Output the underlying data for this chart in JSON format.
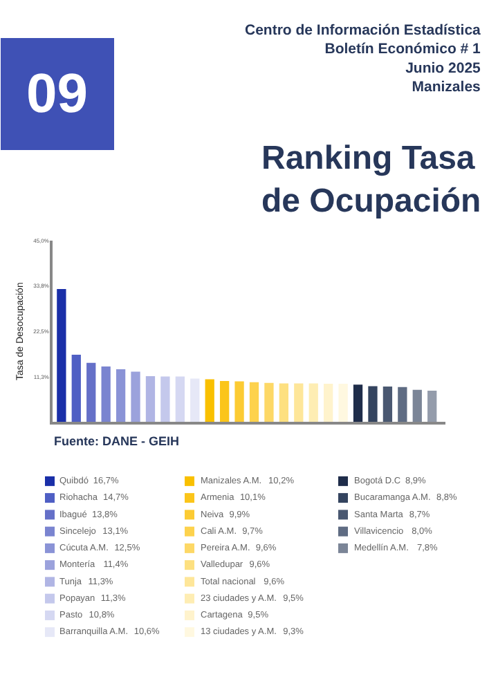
{
  "chart_data": [
    {
      "type": "bar",
      "title": "Ranking Tasa de Ocupación",
      "subtitle": "Centro de Información Estadística\nBoletín Económico # 1\nJunio 2025\nManizales",
      "ylabel": "Tasa de Desocupación",
      "categories": [
        null,
        null,
        null,
        null,
        null,
        null,
        null,
        null,
        null,
        null,
        null,
        null,
        null,
        null,
        null,
        null,
        null,
        null,
        null,
        null,
        null,
        null,
        null,
        null,
        null,
        null
      ],
      "values": [
        33.0,
        16.7,
        14.7,
        13.8,
        13.1,
        12.5,
        11.4,
        11.3,
        11.3,
        10.8,
        10.6,
        10.2,
        10.1,
        9.9,
        9.7,
        9.6,
        9.6,
        9.6,
        9.5,
        9.5,
        9.3,
        8.9,
        8.8,
        8.7,
        8.0,
        7.8
      ],
      "colors": [
        "#1a2fa8",
        "#4f5fc4",
        "#6570c8",
        "#7a84d0",
        "#8a93d6",
        "#9ba2dc",
        "#b0b5e4",
        "#c4c8ec",
        "#d5d8f2",
        "#e6e8f7",
        "#f9c000",
        "#fbc51a",
        "#fccb33",
        "#fdd24d",
        "#fdd866",
        "#fde080",
        "#fee699",
        "#feedb3",
        "#fff3cc",
        "#fff8e0",
        "#1f2d4a",
        "#34445f",
        "#4a5871",
        "#5f6c83",
        "#7b8597",
        "#949cab"
      ],
      "ylim": [
        0,
        45
      ],
      "yticks": [
        {
          "value": 11.25,
          "label": "11,3%"
        },
        {
          "value": 22.5,
          "label": "22,5%"
        },
        {
          "value": 33.75,
          "label": "33,8%"
        },
        {
          "value": 45,
          "label": "45,0%"
        }
      ],
      "tick_labels": "y",
      "grid": false,
      "legend": false,
      "annotations": [
        "09",
        "Fuente: DANE - GEIH"
      ]
    },
    {
      "type": "other",
      "categories": [
        "Quibdó",
        "Riohacha",
        "Ibagué",
        "Sincelejo",
        "Cúcuta A.M.",
        "Montería",
        "Tunja",
        "Popayan",
        "Pasto",
        "Barranquilla A.M.",
        "Manizales A.M.",
        "Armenia",
        "Neiva",
        "Cali A.M.",
        "Pereira A.M.",
        "Valledupar",
        "Total nacional",
        "23 ciudades y A.M.",
        "Cartagena",
        "13 ciudades y A.M.",
        "Bogotá D.C",
        "Bucaramanga A.M.",
        "Santa Marta",
        "Villavicencio",
        "Medellín A.M."
      ],
      "values": [
        16.7,
        14.7,
        13.8,
        13.1,
        12.5,
        11.4,
        11.3,
        11.3,
        10.8,
        10.6,
        10.2,
        10.1,
        9.9,
        9.7,
        9.6,
        9.6,
        9.6,
        9.5,
        9.5,
        9.3,
        8.9,
        8.8,
        8.7,
        8.0,
        7.8
      ],
      "value_labels": [
        "16,7%",
        "14,7%",
        "13,8%",
        "13,1%",
        "12,5%",
        "11,4%",
        "11,3%",
        "11,3%",
        "10,8%",
        "10,6%",
        "10,2%",
        "10,1%",
        "9,9%",
        "9,7%",
        "9,6%",
        "9,6%",
        "9,6%",
        "9,5%",
        "9,5%",
        "9,3%",
        "8,9%",
        "8,8%",
        "8,7%",
        "8,0%",
        "7,8%"
      ],
      "colors": [
        "#1a2fa8",
        "#4f5fc4",
        "#6570c8",
        "#7a84d0",
        "#8a93d6",
        "#9ba2dc",
        "#b0b5e4",
        "#c4c8ec",
        "#d5d8f2",
        "#e6e8f7",
        "#f9c000",
        "#fbc51a",
        "#fccb33",
        "#fdd24d",
        "#fdd866",
        "#fde080",
        "#fee699",
        "#feedb3",
        "#fff3cc",
        "#fff8e0",
        "#1f2d4a",
        "#34445f",
        "#4a5871",
        "#5f6c83",
        "#7b8597"
      ]
    }
  ]
}
